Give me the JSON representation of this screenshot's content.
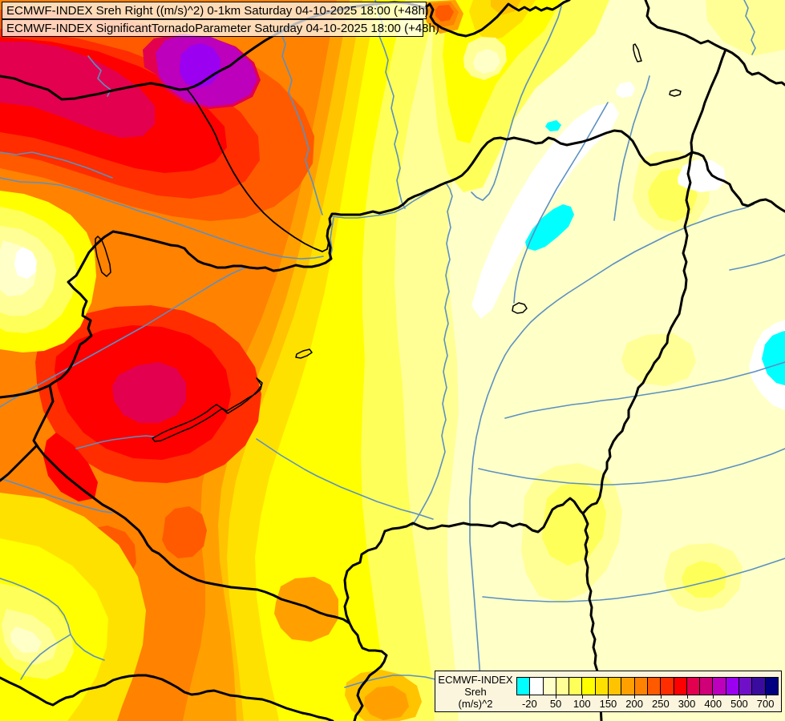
{
  "header": {
    "line1": "ECMWF-INDEX Sreh Right ((m/s)^2) 0-1km Saturday 04-10-2025 18:00 (+48h)",
    "line2": "ECMWF-INDEX SignificantTornadoParameter Saturday 04-10-2025 18:00 (+48h)"
  },
  "legend": {
    "title_line1": "ECMWF-INDEX",
    "title_line2": "Sreh",
    "title_line3": "(m/s)^2",
    "tick_labels": [
      "-20",
      "50",
      "100",
      "150",
      "200",
      "250",
      "300",
      "400",
      "500",
      "700"
    ],
    "colors": [
      "#00FFFF",
      "#FFFFFF",
      "#FFFFC8",
      "#FFFF96",
      "#FFFF5A",
      "#FFFF00",
      "#FFE100",
      "#FFC300",
      "#FFA000",
      "#FF8200",
      "#FF5A00",
      "#FF2D00",
      "#FF0000",
      "#E3004E",
      "#CF0078",
      "#BC00BC",
      "#9B00F0",
      "#6F10C8",
      "#3A0C9E",
      "#000080"
    ]
  },
  "palette": {
    "c1": "#00FFFF",
    "c2": "#FFFFFF",
    "c3": "#FFFFC8",
    "c4": "#FFFF96",
    "c5": "#FFFF5A",
    "c6": "#FFFF00",
    "c7": "#FFE100",
    "c8": "#FFC300",
    "c9": "#FFA000",
    "c10": "#FF8200",
    "c11": "#FF5A00",
    "c12": "#FF2D00",
    "c13": "#FF0000",
    "c14": "#E3004E",
    "c15": "#CF0078",
    "c16": "#BC00BC",
    "c17": "#9B00F0",
    "c18": "#6F10C8",
    "c19": "#3A0C9E",
    "c20": "#000080",
    "river": "#5B90C2",
    "border": "#000000",
    "legend_bg": "#FBF5DE"
  },
  "chart_data": {
    "type": "heatmap",
    "title": "ECMWF-INDEX Sreh Right ((m/s)^2) 0-1km",
    "subtitle": "ECMWF-INDEX SignificantTornadoParameter",
    "valid_time": "Saturday 04-10-2025 18:00 (+48h)",
    "legend_title": "ECMWF-INDEX Sreh (m/s)^2",
    "scale_tick_values": [
      -20,
      50,
      100,
      150,
      200,
      250,
      300,
      400,
      500,
      700
    ],
    "scale_colors": [
      "#00FFFF",
      "#FFFFFF",
      "#FFFFC8",
      "#FFFF96",
      "#FFFF5A",
      "#FFFF00",
      "#FFE100",
      "#FFC300",
      "#FFA000",
      "#FF8200",
      "#FF5A00",
      "#FF2D00",
      "#FF0000",
      "#E3004E",
      "#CF0078",
      "#BC00BC",
      "#9B00F0",
      "#6F10C8",
      "#3A0C9E",
      "#000080"
    ],
    "description": "Filled contour field of storm-relative helicity over the Carpathian basin: maxima (300-500 m2/s2, red-magenta-purple) over the northwest and west, broad orange-yellow gradient across the middle, low values (0-50) over the east, and negative pockets (cyan/white) over northeast Hungary and the far east edge"
  }
}
